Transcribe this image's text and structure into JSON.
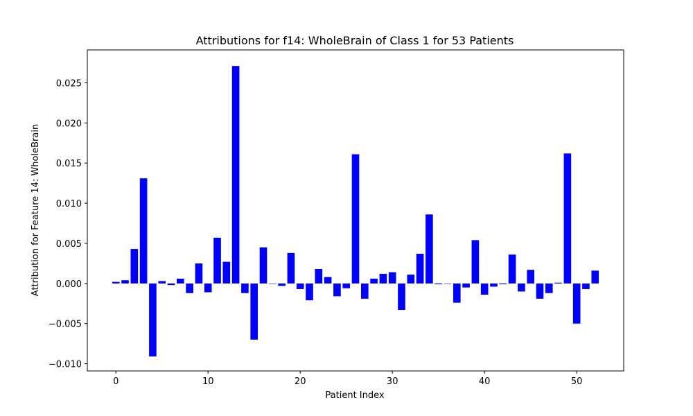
{
  "chart_data": {
    "type": "bar",
    "title": "Attributions for f14: WholeBrain of Class 1 for 53 Patients",
    "xlabel": "Patient Index",
    "ylabel": "Attribution for Feature 14: WholeBrain",
    "xlim": [
      -3.1,
      55.1
    ],
    "ylim": [
      -0.0109,
      0.0291
    ],
    "xticks": [
      0,
      10,
      20,
      30,
      40,
      50
    ],
    "xtick_labels": [
      "0",
      "10",
      "20",
      "30",
      "40",
      "50"
    ],
    "yticks": [
      -0.01,
      -0.005,
      0.0,
      0.005,
      0.01,
      0.015,
      0.02,
      0.025
    ],
    "ytick_labels": [
      "−0.010",
      "−0.005",
      "0.000",
      "0.005",
      "0.010",
      "0.015",
      "0.020",
      "0.025"
    ],
    "grid": false,
    "bar_color": "#0000ff",
    "bar_width": 0.8,
    "categories": [
      0,
      1,
      2,
      3,
      4,
      5,
      6,
      7,
      8,
      9,
      10,
      11,
      12,
      13,
      14,
      15,
      16,
      17,
      18,
      19,
      20,
      21,
      22,
      23,
      24,
      25,
      26,
      27,
      28,
      29,
      30,
      31,
      32,
      33,
      34,
      35,
      36,
      37,
      38,
      39,
      40,
      41,
      42,
      43,
      44,
      45,
      46,
      47,
      48,
      49,
      50,
      51,
      52
    ],
    "values": [
      0.0002,
      0.0004,
      0.0043,
      0.0131,
      -0.0091,
      0.0003,
      -0.0002,
      0.0006,
      -0.0012,
      0.0025,
      -0.0011,
      0.0057,
      0.0027,
      0.0271,
      -0.0012,
      -0.007,
      0.0045,
      0.0,
      -0.0003,
      0.0038,
      -0.0007,
      -0.0021,
      0.0018,
      0.0008,
      -0.0016,
      -0.0006,
      0.0161,
      -0.0019,
      0.0006,
      0.0012,
      0.0014,
      -0.0033,
      0.0011,
      0.0037,
      0.0086,
      -0.0001,
      0.0,
      -0.0024,
      -0.0005,
      0.0054,
      -0.0014,
      -0.0004,
      -0.0001,
      0.0036,
      -0.001,
      0.0017,
      -0.0019,
      -0.0012,
      0.0001,
      0.0162,
      -0.005,
      -0.0007,
      0.0016
    ]
  }
}
